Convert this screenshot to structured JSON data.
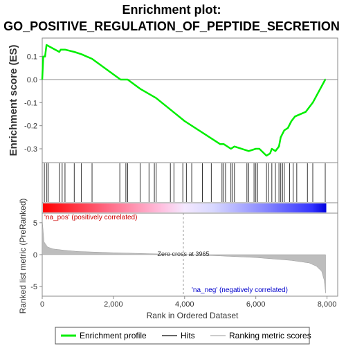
{
  "chart_data": {
    "type": "line",
    "title_line1": "Enrichment plot:",
    "title_line2": "GO_POSITIVE_REGULATION_OF_PEPTIDE_SECRETION",
    "es_panel": {
      "ylabel": "Enrichment score (ES)",
      "ylim": [
        -0.36,
        0.18
      ],
      "yticks": [
        "0.1",
        "0.0",
        "-0.1",
        "-0.2",
        "-0.3"
      ],
      "ytick_values": [
        0.1,
        0.0,
        -0.1,
        -0.2,
        -0.3
      ],
      "line_color": "#00ee00",
      "x": [
        0,
        30,
        80,
        120,
        480,
        520,
        640,
        900,
        1100,
        1400,
        2200,
        2300,
        2400,
        2750,
        3200,
        3600,
        4000,
        4700,
        5000,
        5100,
        5300,
        5400,
        5800,
        6000,
        6100,
        6300,
        6400,
        6450,
        6550,
        6650,
        6700,
        6800,
        6900,
        7000,
        7100,
        7400,
        7600,
        7950,
        7960
      ],
      "y": [
        0.0,
        0.1,
        0.1,
        0.15,
        0.12,
        0.13,
        0.13,
        0.12,
        0.11,
        0.09,
        0.0,
        0.0,
        0.0,
        -0.04,
        -0.08,
        -0.13,
        -0.18,
        -0.25,
        -0.28,
        -0.28,
        -0.3,
        -0.29,
        -0.31,
        -0.3,
        -0.3,
        -0.33,
        -0.32,
        -0.3,
        -0.31,
        -0.29,
        -0.25,
        -0.22,
        -0.21,
        -0.18,
        -0.16,
        -0.14,
        -0.1,
        0.0,
        0.0
      ]
    },
    "hits": [
      60,
      130,
      170,
      480,
      560,
      640,
      900,
      1100,
      1400,
      2180,
      2350,
      2400,
      2750,
      3000,
      3150,
      3200,
      3600,
      3700,
      3950,
      4050,
      4200,
      4500,
      4750,
      5050,
      5100,
      5150,
      5300,
      5350,
      5400,
      5750,
      5800,
      5950,
      6000,
      6050,
      6300,
      6350,
      6450,
      6550,
      6650,
      6700,
      6750,
      6800,
      6950,
      7050,
      7150,
      7450,
      7600,
      7950
    ],
    "rank_panel": {
      "ylabel": "Ranked list metric (PreRanked)",
      "ylim": [
        -6.5,
        6.5
      ],
      "yticks": [
        "5",
        "0",
        "-5"
      ],
      "ytick_values": [
        5,
        0,
        -5
      ],
      "x": [
        0,
        50,
        150,
        300,
        600,
        1000,
        2000,
        3000,
        3965,
        5000,
        6000,
        7000,
        7500,
        7700,
        7850,
        7920,
        7960
      ],
      "metric": [
        5.5,
        2.0,
        1.2,
        0.9,
        0.7,
        0.5,
        0.3,
        0.15,
        0.0,
        -0.2,
        -0.45,
        -0.9,
        -1.3,
        -1.8,
        -2.6,
        -4.0,
        -6.0
      ]
    },
    "xlabel": "Rank in Ordered Dataset",
    "xlim": [
      0,
      8300
    ],
    "xticks": [
      "0",
      "2,000",
      "4,000",
      "6,000",
      "8,000"
    ],
    "xtick_values": [
      0,
      2000,
      4000,
      6000,
      8000
    ],
    "zero_cross_rank": 3965,
    "zero_cross_label": "Zero cross at 3965",
    "pos_label": "'na_pos' (positively correlated)",
    "neg_label": "'na_neg' (negatively correlated)",
    "legend": {
      "placement": "bottom",
      "items": [
        {
          "label": "Enrichment profile",
          "color": "#00ee00"
        },
        {
          "label": "Hits",
          "color": "#666666"
        },
        {
          "label": "Ranking metric scores",
          "color": "#cccccc"
        }
      ]
    }
  }
}
